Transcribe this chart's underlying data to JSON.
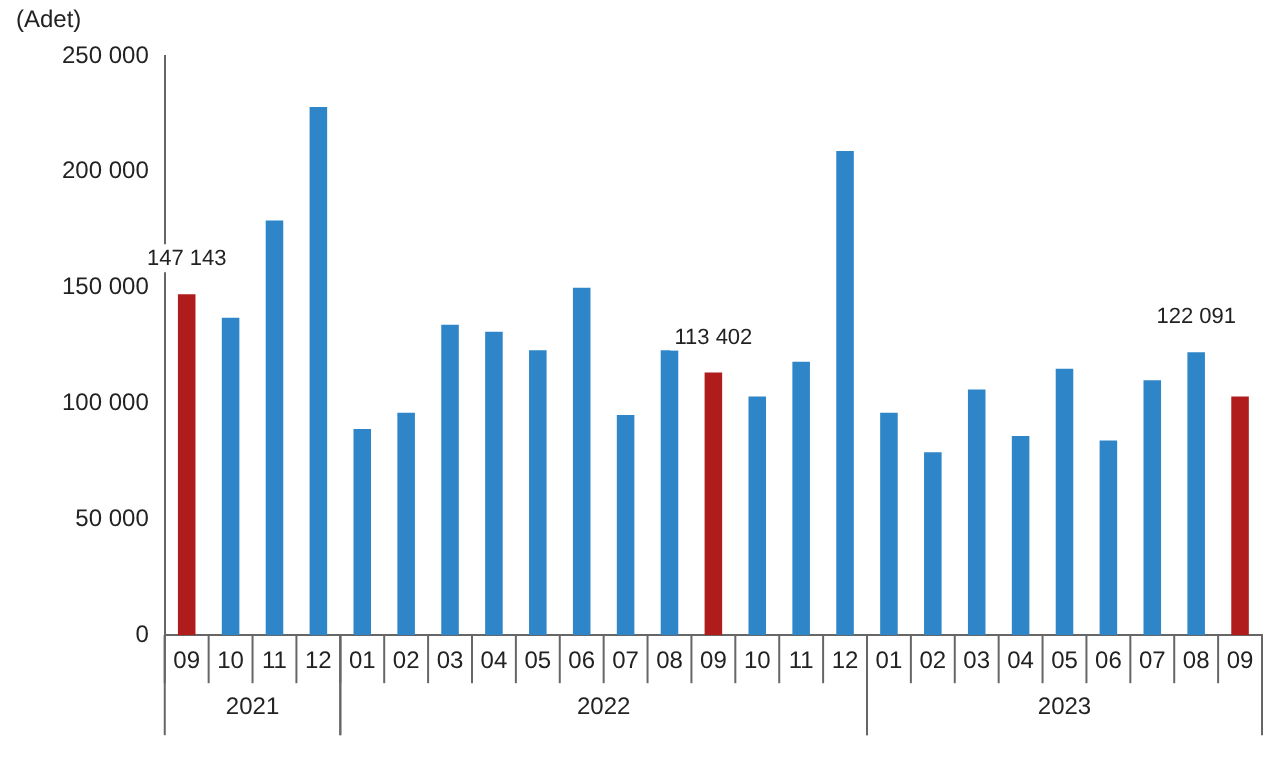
{
  "chart_data": {
    "type": "bar",
    "ylabel": "(Adet)",
    "categories": [
      "09",
      "10",
      "11",
      "12",
      "01",
      "02",
      "03",
      "04",
      "05",
      "06",
      "07",
      "08",
      "09",
      "10",
      "11",
      "12",
      "01",
      "02",
      "03",
      "04",
      "05",
      "06",
      "07",
      "08",
      "09"
    ],
    "values": [
      147143,
      137000,
      179000,
      228000,
      89000,
      96000,
      134000,
      131000,
      123000,
      150000,
      95000,
      123000,
      113402,
      103000,
      118000,
      209000,
      96000,
      79000,
      106000,
      86000,
      115000,
      84000,
      110000,
      122091,
      103000
    ],
    "colors": [
      "#b01c1c",
      "#2e86c8",
      "#2e86c8",
      "#2e86c8",
      "#2e86c8",
      "#2e86c8",
      "#2e86c8",
      "#2e86c8",
      "#2e86c8",
      "#2e86c8",
      "#2e86c8",
      "#2e86c8",
      "#b01c1c",
      "#2e86c8",
      "#2e86c8",
      "#2e86c8",
      "#2e86c8",
      "#2e86c8",
      "#2e86c8",
      "#2e86c8",
      "#2e86c8",
      "#2e86c8",
      "#2e86c8",
      "#2e86c8",
      "#b01c1c"
    ],
    "value_labels": [
      "147 143",
      null,
      null,
      null,
      null,
      null,
      null,
      null,
      null,
      null,
      null,
      null,
      "113 402",
      null,
      null,
      null,
      null,
      null,
      null,
      null,
      null,
      null,
      null,
      "122 091",
      null
    ],
    "ylim": [
      0,
      250000
    ],
    "yticks": [
      {
        "value": 0,
        "label": "0"
      },
      {
        "value": 50000,
        "label": "50 000"
      },
      {
        "value": 100000,
        "label": "100 000"
      },
      {
        "value": 150000,
        "label": "150 000"
      },
      {
        "value": 200000,
        "label": "200 000"
      },
      {
        "value": 250000,
        "label": "250 000"
      }
    ],
    "annotations": [
      "2021",
      "2022",
      "2023"
    ],
    "grid": false,
    "legend": false
  }
}
